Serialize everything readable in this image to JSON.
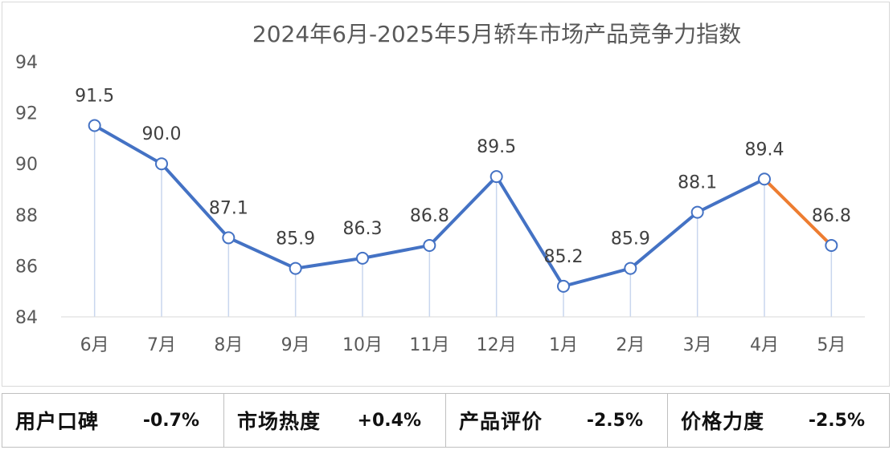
{
  "chart_data": {
    "type": "line",
    "title": "2024年6月-2025年5月轿车市场产品竞争力指数",
    "categories": [
      "6月",
      "7月",
      "8月",
      "9月",
      "10月",
      "11月",
      "12月",
      "1月",
      "2月",
      "3月",
      "4月",
      "5月"
    ],
    "series": [
      {
        "values": [
          91.5,
          90.0,
          87.1,
          85.9,
          86.3,
          86.8,
          89.5,
          85.2,
          85.9,
          88.1,
          89.4,
          86.8
        ]
      }
    ],
    "data_labels": [
      "91.5",
      "90.0",
      "87.1",
      "85.9",
      "86.3",
      "86.8",
      "89.5",
      "85.2",
      "85.9",
      "88.1",
      "89.4",
      "86.8"
    ],
    "ylim": [
      84,
      94
    ],
    "yticks": [
      "84",
      "86",
      "88",
      "90",
      "92",
      "94"
    ],
    "grid": false,
    "colors": {
      "line": "#4472c4",
      "last_segment": "#ed7d31",
      "drop_line": "#c9d6ee"
    }
  },
  "metrics": [
    {
      "label": "用户口碑",
      "value": "-0.7%"
    },
    {
      "label": "市场热度",
      "value": "+0.4%"
    },
    {
      "label": "产品评价",
      "value": "-2.5%"
    },
    {
      "label": "价格力度",
      "value": "-2.5%"
    }
  ]
}
